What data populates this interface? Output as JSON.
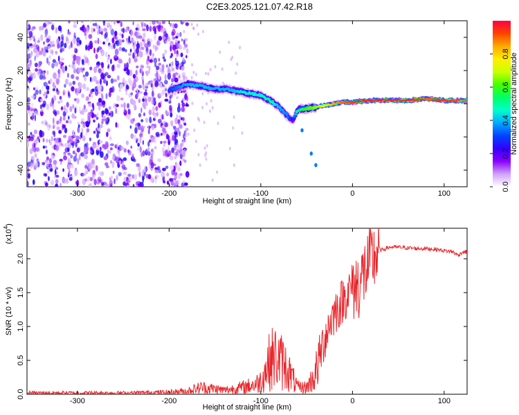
{
  "title": "C2E3.2025.121.07.42.R18",
  "chart_data": [
    {
      "type": "heatmap",
      "xlabel": "Height of straight line (km)",
      "ylabel": "Frequency (Hz)",
      "xlim": [
        -355,
        125
      ],
      "ylim": [
        -50,
        50
      ],
      "x_ticks": [
        -300,
        -200,
        -100,
        0,
        100
      ],
      "y_ticks": [
        -40,
        -20,
        0,
        20,
        40
      ],
      "colorbar": {
        "label": "Normalized spectral amplitude",
        "range": [
          0.0,
          1.0
        ],
        "ticks": [
          "0.0",
          "0.2",
          "0.4",
          "0.6",
          "0.8"
        ],
        "colors": [
          "#ffffff",
          "#d0a0ff",
          "#8800ff",
          "#3300ff",
          "#0044ff",
          "#00aaff",
          "#00ffcc",
          "#00ff66",
          "#44ff00",
          "#ccff00",
          "#ffee00",
          "#ffaa00",
          "#ff4400",
          "#ff0044"
        ]
      },
      "noise_region_x": [
        -355,
        -200
      ],
      "ridge": {
        "x": [
          -200,
          -190,
          -180,
          -170,
          -160,
          -150,
          -140,
          -130,
          -120,
          -110,
          -100,
          -90,
          -80,
          -70,
          -65,
          -60,
          -55,
          -50,
          -40,
          -30,
          -20,
          -10,
          0,
          20,
          40,
          60,
          80,
          100,
          125
        ],
        "frequency": [
          8,
          10,
          12,
          11,
          10,
          9,
          9,
          8,
          7,
          6,
          5,
          2,
          -2,
          -8,
          -10,
          -4,
          -3,
          -3,
          -2,
          -1,
          0,
          1,
          1,
          2,
          2,
          2,
          3,
          2,
          2
        ],
        "amplitude": [
          0.3,
          0.35,
          0.4,
          0.4,
          0.4,
          0.4,
          0.4,
          0.4,
          0.45,
          0.45,
          0.45,
          0.5,
          0.4,
          0.35,
          0.25,
          0.5,
          0.55,
          0.6,
          0.65,
          0.75,
          0.85,
          0.9,
          0.95,
          0.97,
          0.97,
          0.97,
          0.92,
          0.95,
          0.9
        ]
      },
      "outliers": [
        {
          "x": -55,
          "frequency": -16
        },
        {
          "x": -45,
          "frequency": -30
        },
        {
          "x": -40,
          "frequency": -37
        }
      ]
    },
    {
      "type": "line",
      "xlabel": "Height of straight line (km)",
      "ylabel": "SNR (10 * v/v)",
      "scale_note": "(x10",
      "scale_exp": "4",
      "xlim": [
        -355,
        125
      ],
      "ylim": [
        0,
        2.45
      ],
      "x_ticks": [
        -300,
        -200,
        -100,
        0,
        100
      ],
      "y_ticks": [
        "0.0",
        "0.5",
        "1.0",
        "1.5",
        "2.0"
      ],
      "color": "#e8262b",
      "series": [
        {
          "x": [
            -355,
            -250,
            -200,
            -180,
            -165,
            -150,
            -140,
            -120,
            -105,
            -100,
            -95,
            -90,
            -85,
            -80,
            -75,
            -70,
            -60,
            -50,
            -40,
            -35,
            -30,
            -25,
            -20,
            -15,
            -10,
            -5,
            0,
            5,
            10,
            15,
            20,
            25,
            30,
            40,
            50,
            60,
            70,
            80,
            90,
            100,
            110,
            115,
            120,
            125
          ],
          "values": [
            0.02,
            0.02,
            0.03,
            0.05,
            0.1,
            0.08,
            0.06,
            0.1,
            0.15,
            0.2,
            0.35,
            0.5,
            0.55,
            0.5,
            0.45,
            0.35,
            0.1,
            0.1,
            0.3,
            0.6,
            0.85,
            1.05,
            1.2,
            1.3,
            1.4,
            1.5,
            1.6,
            1.6,
            1.7,
            1.85,
            1.95,
            2.05,
            2.12,
            2.17,
            2.17,
            2.16,
            2.15,
            2.15,
            2.14,
            2.12,
            2.1,
            2.05,
            2.1,
            2.1
          ]
        }
      ]
    }
  ]
}
